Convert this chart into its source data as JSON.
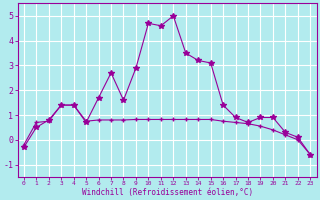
{
  "xlabel": "Windchill (Refroidissement éolien,°C)",
  "hours": [
    0,
    1,
    2,
    3,
    4,
    5,
    6,
    7,
    8,
    9,
    10,
    11,
    12,
    13,
    14,
    15,
    16,
    17,
    18,
    19,
    20,
    21,
    22,
    23
  ],
  "windchill": [
    -0.3,
    0.5,
    0.8,
    1.4,
    1.4,
    0.7,
    1.7,
    2.7,
    1.6,
    2.9,
    4.7,
    4.6,
    5.0,
    3.5,
    3.2,
    3.1,
    1.4,
    0.9,
    0.7,
    0.9,
    0.9,
    0.3,
    0.1,
    -0.6
  ],
  "trend": [
    -0.2,
    0.7,
    0.75,
    1.4,
    1.4,
    0.75,
    0.8,
    0.8,
    0.8,
    0.82,
    0.82,
    0.82,
    0.82,
    0.82,
    0.82,
    0.82,
    0.75,
    0.7,
    0.65,
    0.55,
    0.4,
    0.2,
    0.0,
    -0.6
  ],
  "line_color": "#990099",
  "bg_color": "#b2ebee",
  "grid_color": "#c8e8eb",
  "ylim": [
    -1.5,
    5.5
  ],
  "yticks": [
    -1,
    0,
    1,
    2,
    3,
    4,
    5
  ]
}
